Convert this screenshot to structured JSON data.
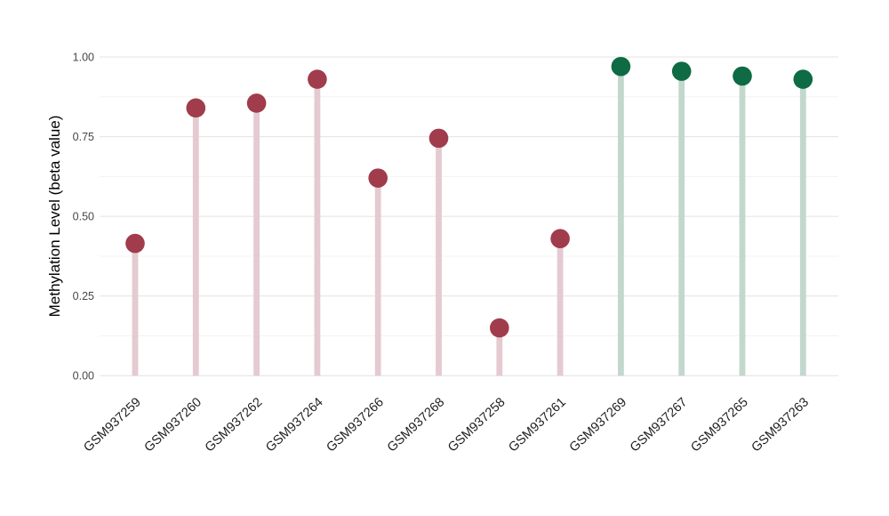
{
  "chart_data": {
    "type": "scatter",
    "variant": "lollipop",
    "title": "",
    "xlabel": "",
    "ylabel": "Methylation Level (beta value)",
    "ylim": [
      0,
      1
    ],
    "yticks": [
      0,
      0.25,
      0.5,
      0.75,
      1.0
    ],
    "ytick_labels": [
      "0.00",
      "0.25",
      "0.50",
      "0.75",
      "1.00"
    ],
    "minor_gridlines": [
      0.125,
      0.375,
      0.625,
      0.875
    ],
    "grid": true,
    "legend_position": "none",
    "categories": [
      "GSM937259",
      "GSM937260",
      "GSM937262",
      "GSM937264",
      "GSM937266",
      "GSM937268",
      "GSM937258",
      "GSM937261",
      "GSM937269",
      "GSM937267",
      "GSM937265",
      "GSM937263"
    ],
    "points": [
      {
        "label": "GSM937259",
        "value": 0.415,
        "group": "maroon"
      },
      {
        "label": "GSM937260",
        "value": 0.84,
        "group": "maroon"
      },
      {
        "label": "GSM937262",
        "value": 0.855,
        "group": "maroon"
      },
      {
        "label": "GSM937264",
        "value": 0.93,
        "group": "maroon"
      },
      {
        "label": "GSM937266",
        "value": 0.62,
        "group": "maroon"
      },
      {
        "label": "GSM937268",
        "value": 0.745,
        "group": "maroon"
      },
      {
        "label": "GSM937258",
        "value": 0.15,
        "group": "maroon"
      },
      {
        "label": "GSM937261",
        "value": 0.43,
        "group": "maroon"
      },
      {
        "label": "GSM937269",
        "value": 0.97,
        "group": "green"
      },
      {
        "label": "GSM937267",
        "value": 0.955,
        "group": "green"
      },
      {
        "label": "GSM937265",
        "value": 0.94,
        "group": "green"
      },
      {
        "label": "GSM937263",
        "value": 0.93,
        "group": "green"
      }
    ],
    "groups": {
      "maroon": {
        "dot_color": "#A03C4B",
        "stem_color": "#E5CAD1"
      },
      "green": {
        "dot_color": "#0E6B43",
        "stem_color": "#C2D8CC"
      }
    },
    "colors": {
      "major_grid": "#E6E6E6",
      "minor_grid": "#F3F3F3",
      "background": "#FFFFFF"
    }
  }
}
